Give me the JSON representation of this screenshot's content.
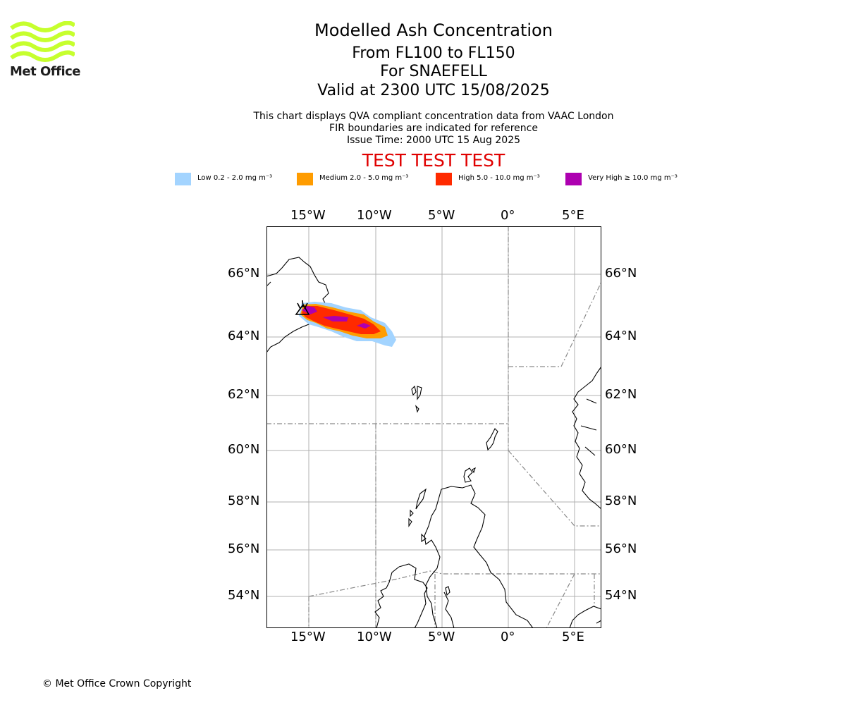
{
  "header": {
    "title": "Modelled Ash Concentration",
    "levels": "From FL100 to FL150",
    "volcano": "For SNAEFELL",
    "valid_time": "Valid at 2300 UTC 15/08/2025",
    "description": "This chart displays QVA compliant concentration data from VAAC London",
    "fir_note": "FIR boundaries are indicated for reference",
    "issue_time": "Issue Time: 2000 UTC 15 Aug 2025",
    "test_banner": "TEST TEST TEST"
  },
  "logo": {
    "text": "Met Office",
    "color": "#c6ff2e"
  },
  "legend": [
    {
      "label": "Low 0.2 - 2.0 mg m⁻³",
      "color": "#a3d4ff"
    },
    {
      "label": "Medium 2.0 - 5.0 mg m⁻³",
      "color": "#ff9c00"
    },
    {
      "label": "High 5.0 - 10.0 mg m⁻³",
      "color": "#ff2a00"
    },
    {
      "label": "Very High ≥ 10.0 mg m⁻³",
      "color": "#ad00b0"
    }
  ],
  "map": {
    "lon_labels": [
      "15°W",
      "10°W",
      "5°W",
      "0°",
      "5°E"
    ],
    "lat_labels": [
      "66°N",
      "64°N",
      "62°N",
      "60°N",
      "58°N",
      "56°N",
      "54°N"
    ]
  },
  "footer": {
    "copyright": "© Met Office Crown Copyright"
  }
}
